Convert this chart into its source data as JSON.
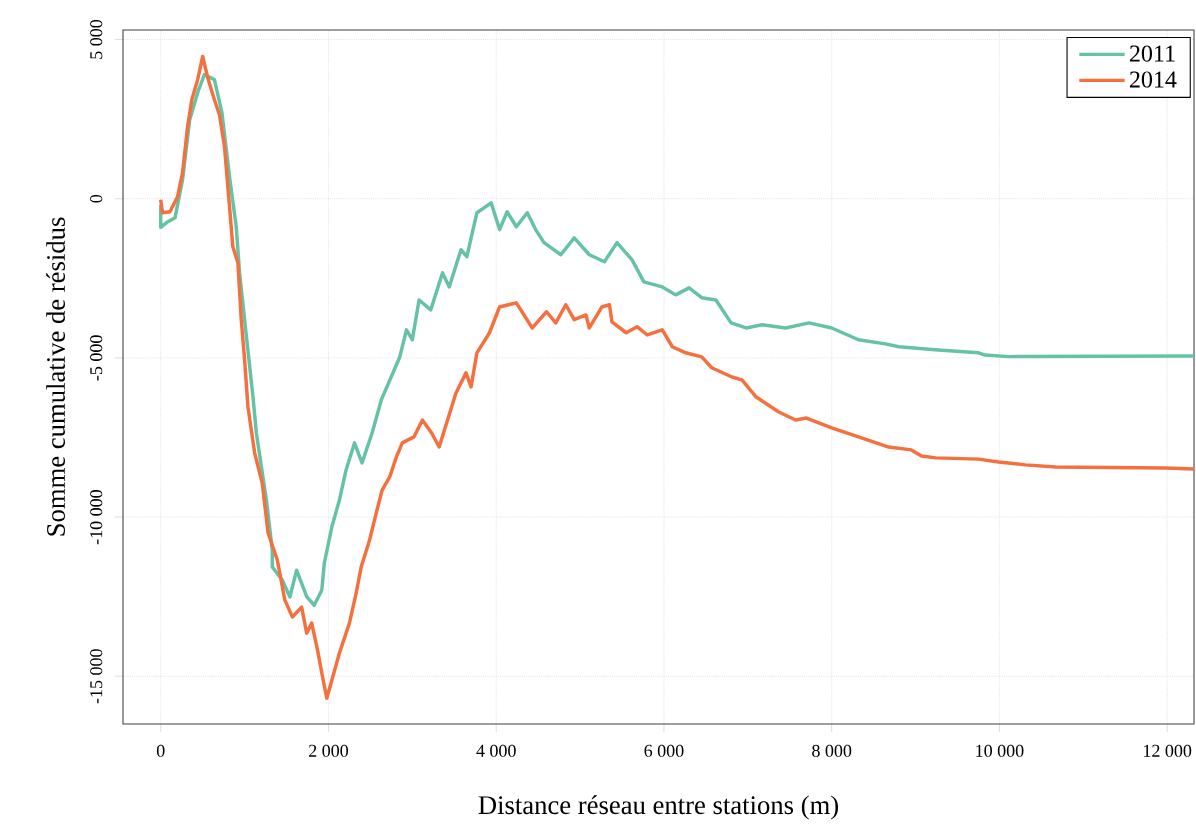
{
  "chart_data": {
    "type": "line",
    "xlabel": "Distance réseau entre stations (m)",
    "ylabel": "Somme cumulative de résidus",
    "xlim": [
      -450,
      12320
    ],
    "ylim": [
      -16500,
      5300
    ],
    "xticks": [
      0,
      {
        "value": 2000,
        "label": "2 000"
      },
      {
        "value": 4000,
        "label": "4 000"
      },
      {
        "value": 6000,
        "label": "6 000"
      },
      {
        "value": 8000,
        "label": "8 000"
      },
      {
        "value": 10000,
        "label": "10 000"
      },
      {
        "value": 12000,
        "label": "12 000"
      }
    ],
    "yticks": [
      {
        "value": -15000,
        "label": "-15 000"
      },
      {
        "value": -10000,
        "label": "-10 000"
      },
      {
        "value": -5000,
        "label": "-5 000"
      },
      0,
      {
        "value": 5000,
        "label": "5 000"
      }
    ],
    "grid": true,
    "legend": "top right",
    "series": [
      {
        "name": "2011",
        "color": "#66c2a5",
        "x": [
          0,
          0,
          70,
          170,
          260,
          345,
          440,
          520,
          640,
          730,
          820,
          900,
          940,
          1000,
          1100,
          1140,
          1260,
          1330,
          1330,
          1450,
          1540,
          1620,
          1740,
          1830,
          1920,
          1950,
          2040,
          2130,
          2210,
          2310,
          2400,
          2520,
          2630,
          2850,
          2930,
          3000,
          3080,
          3220,
          3360,
          3440,
          3580,
          3650,
          3770,
          3940,
          4040,
          4130,
          4240,
          4370,
          4470,
          4570,
          4770,
          4930,
          5110,
          5290,
          5440,
          5620,
          5760,
          5980,
          6140,
          6300,
          6450,
          6620,
          6800,
          6980,
          7170,
          7450,
          7730,
          8000,
          8320,
          8640,
          8800,
          9270,
          9750,
          9830,
          10110,
          12320
        ],
        "values": [
          -200,
          -900,
          -750,
          -600,
          600,
          2480,
          3330,
          3900,
          3740,
          2700,
          690,
          -880,
          -2330,
          -3800,
          -6230,
          -7360,
          -9470,
          -11040,
          -11570,
          -11980,
          -12510,
          -11670,
          -12500,
          -12770,
          -12300,
          -11450,
          -10310,
          -9470,
          -8520,
          -7670,
          -8300,
          -7360,
          -6320,
          -4970,
          -4120,
          -4430,
          -3180,
          -3490,
          -2330,
          -2770,
          -1600,
          -1820,
          -440,
          -130,
          -970,
          -410,
          -880,
          -440,
          -970,
          -1380,
          -1760,
          -1230,
          -1760,
          -1980,
          -1380,
          -1920,
          -2610,
          -2770,
          -3020,
          -2800,
          -3110,
          -3180,
          -3900,
          -4060,
          -3960,
          -4060,
          -3900,
          -4060,
          -4430,
          -4560,
          -4650,
          -4750,
          -4840,
          -4910,
          -4960,
          -4940
        ]
      },
      {
        "name": "2014",
        "color": "#f4703f",
        "x": [
          0,
          20,
          110,
          200,
          260,
          320,
          370,
          440,
          500,
          560,
          640,
          700,
          760,
          820,
          860,
          920,
          960,
          1000,
          1040,
          1120,
          1210,
          1280,
          1390,
          1480,
          1570,
          1680,
          1740,
          1800,
          1870,
          1930,
          1980,
          2050,
          2130,
          2250,
          2330,
          2390,
          2490,
          2570,
          2640,
          2730,
          2810,
          2880,
          3020,
          3120,
          3230,
          3320,
          3420,
          3520,
          3640,
          3700,
          3770,
          3920,
          4040,
          4240,
          4430,
          4600,
          4710,
          4830,
          4930,
          5070,
          5110,
          5260,
          5350,
          5380,
          5550,
          5680,
          5800,
          5980,
          6100,
          6260,
          6450,
          6570,
          6810,
          6930,
          7100,
          7370,
          7570,
          7700,
          8000,
          8320,
          8680,
          8950,
          9070,
          9240,
          9750,
          9990,
          10310,
          10670,
          11980,
          12320
        ],
        "values": [
          -30,
          -440,
          -410,
          60,
          820,
          2260,
          3110,
          3740,
          4470,
          3800,
          3110,
          2640,
          1640,
          -250,
          -1510,
          -2010,
          -3800,
          -5060,
          -6540,
          -7990,
          -8930,
          -10500,
          -11350,
          -12610,
          -13140,
          -12830,
          -13650,
          -13330,
          -14180,
          -15030,
          -15690,
          -15030,
          -14280,
          -13330,
          -12390,
          -11570,
          -10720,
          -9870,
          -9150,
          -8740,
          -8110,
          -7670,
          -7480,
          -6950,
          -7360,
          -7800,
          -6950,
          -6100,
          -5470,
          -5910,
          -4840,
          -4210,
          -3400,
          -3270,
          -4060,
          -3550,
          -3900,
          -3330,
          -3800,
          -3650,
          -4060,
          -3400,
          -3330,
          -3870,
          -4210,
          -4020,
          -4280,
          -4120,
          -4650,
          -4840,
          -4970,
          -5310,
          -5600,
          -5690,
          -6230,
          -6700,
          -6950,
          -6890,
          -7200,
          -7480,
          -7800,
          -7890,
          -8080,
          -8140,
          -8180,
          -8270,
          -8360,
          -8430,
          -8460,
          -8490
        ]
      }
    ]
  }
}
